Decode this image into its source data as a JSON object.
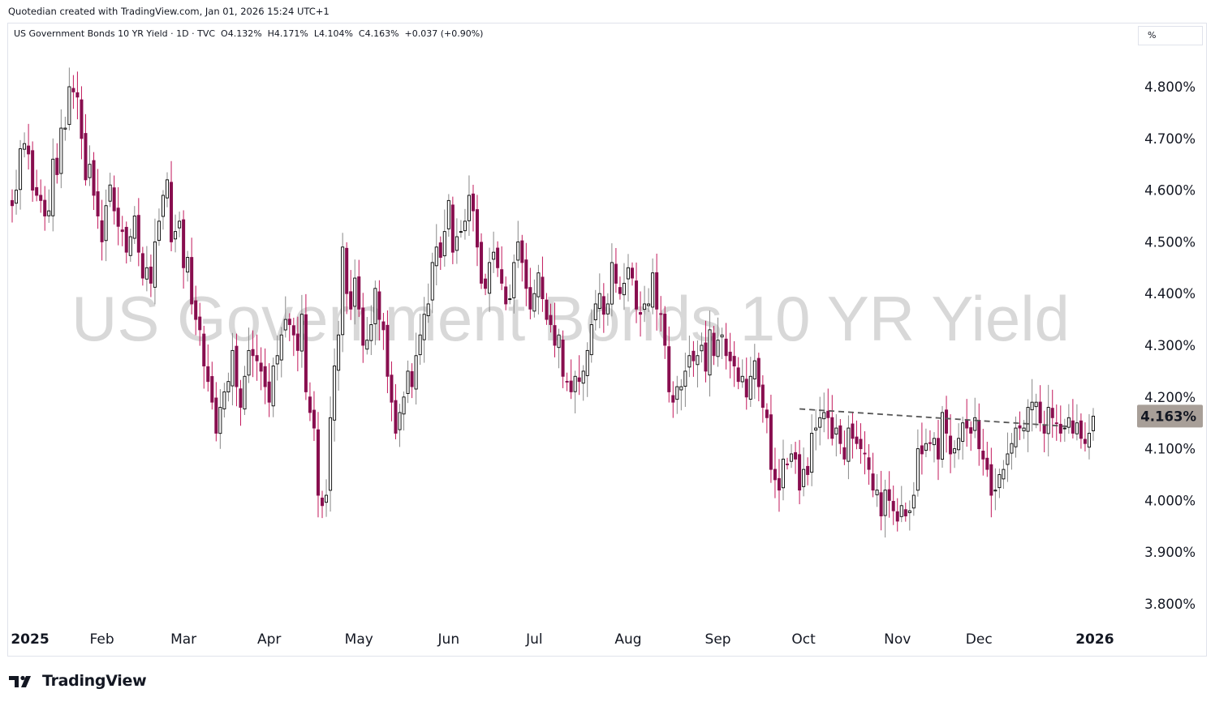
{
  "header": {
    "credit": "Quotedian created with TradingView.com, Jan 01, 2026 15:24 UTC+1"
  },
  "legend": {
    "symbol": "US Government Bonds 10 YR Yield",
    "interval": "1D",
    "source": "TVC",
    "ohlc_text": "O4.132%  H4.171%  L4.104%  C4.163%  +0.037 (+0.90%)"
  },
  "scale_box": {
    "label": "%"
  },
  "watermark": {
    "text": "US Government Bonds 10 YR Yield"
  },
  "footer": {
    "brand": "TradingView"
  },
  "colors": {
    "up_body": "#ffffff",
    "up_border": "#000000",
    "down_body": "#880e4f",
    "wick_up": "#888888",
    "wick_down": "#c2185b",
    "price_tag": "#a89f98",
    "trendline": "#555555"
  },
  "chart_data": {
    "type": "candlestick",
    "title": "US Government Bonds 10 YR Yield",
    "unit": "%",
    "ylim": [
      3.74,
      4.86
    ],
    "y_ticks": [
      4.8,
      4.7,
      4.6,
      4.5,
      4.4,
      4.3,
      4.2,
      4.1,
      4.0,
      3.9,
      3.8
    ],
    "y_tick_labels": [
      "4.800%",
      "4.700%",
      "4.600%",
      "4.500%",
      "4.400%",
      "4.300%",
      "4.200%",
      "4.100%",
      "4.000%",
      "3.900%",
      "3.800%"
    ],
    "x_axis_labels": [
      {
        "label": "2025",
        "date": "2025-01-02",
        "bold": true
      },
      {
        "label": "Feb",
        "date": "2025-02-03",
        "bold": false
      },
      {
        "label": "Mar",
        "date": "2025-03-03",
        "bold": false
      },
      {
        "label": "Apr",
        "date": "2025-04-01",
        "bold": false
      },
      {
        "label": "May",
        "date": "2025-05-01",
        "bold": false
      },
      {
        "label": "Jun",
        "date": "2025-06-02",
        "bold": false
      },
      {
        "label": "Jul",
        "date": "2025-07-01",
        "bold": false
      },
      {
        "label": "Aug",
        "date": "2025-08-01",
        "bold": false
      },
      {
        "label": "Sep",
        "date": "2025-09-02",
        "bold": false
      },
      {
        "label": "Oct",
        "date": "2025-10-01",
        "bold": false
      },
      {
        "label": "Nov",
        "date": "2025-11-03",
        "bold": false
      },
      {
        "label": "Dec",
        "date": "2025-12-01",
        "bold": false
      },
      {
        "label": "2026",
        "date": "2026-01-02",
        "bold": true
      }
    ],
    "last_price": 4.163,
    "last_price_label": "4.163%",
    "trendline": {
      "style": "dashed",
      "points": [
        {
          "date": "2025-09-30",
          "y": 4.177
        },
        {
          "date": "2025-12-31",
          "y": 4.143
        }
      ]
    },
    "series": [
      {
        "name": "US Government Bonds 10 YR Yield",
        "closes": [
          4.57,
          4.6,
          4.68,
          4.69,
          4.67,
          4.6,
          4.59,
          4.58,
          4.55,
          4.56,
          4.66,
          4.63,
          4.72,
          4.72,
          4.8,
          4.79,
          4.78,
          4.7,
          4.62,
          4.65,
          4.59,
          4.55,
          4.5,
          4.57,
          4.61,
          4.56,
          4.53,
          4.52,
          4.48,
          4.51,
          4.55,
          4.48,
          4.43,
          4.45,
          4.42,
          4.5,
          4.54,
          4.59,
          4.62,
          4.5,
          4.52,
          4.54,
          4.45,
          4.47,
          4.38,
          4.35,
          4.33,
          4.26,
          4.23,
          4.19,
          4.13,
          4.18,
          4.21,
          4.23,
          4.29,
          4.22,
          4.18,
          4.24,
          4.29,
          4.28,
          4.27,
          4.25,
          4.22,
          4.19,
          4.26,
          4.28,
          4.32,
          4.35,
          4.34,
          4.32,
          4.29,
          4.36,
          4.21,
          4.17,
          4.14,
          4.01,
          3.99,
          4.01,
          4.16,
          4.26,
          4.32,
          4.49,
          4.4,
          4.37,
          4.43,
          4.37,
          4.3,
          4.31,
          4.34,
          4.41,
          4.35,
          4.33,
          4.24,
          4.19,
          4.13,
          4.17,
          4.2,
          4.25,
          4.22,
          4.28,
          4.32,
          4.36,
          4.38,
          4.46,
          4.49,
          4.47,
          4.52,
          4.58,
          4.48,
          4.51,
          4.52,
          4.54,
          4.59,
          4.56,
          4.49,
          4.42,
          4.41,
          4.46,
          4.48,
          4.45,
          4.42,
          4.38,
          4.39,
          4.46,
          4.5,
          4.46,
          4.41,
          4.37,
          4.4,
          4.44,
          4.39,
          4.35,
          4.34,
          4.3,
          4.32,
          4.24,
          4.23,
          4.21,
          4.24,
          4.23,
          4.25,
          4.29,
          4.34,
          4.38,
          4.4,
          4.36,
          4.38,
          4.46,
          4.42,
          4.4,
          4.42,
          4.45,
          4.43,
          4.37,
          4.36,
          4.38,
          4.38,
          4.44,
          4.37,
          4.36,
          4.3,
          4.21,
          4.19,
          4.22,
          4.22,
          4.25,
          4.28,
          4.27,
          4.28,
          4.3,
          4.25,
          4.33,
          4.28,
          4.31,
          4.32,
          4.28,
          4.27,
          4.26,
          4.23,
          4.24,
          4.2,
          4.24,
          4.27,
          4.22,
          4.18,
          4.16,
          4.06,
          4.04,
          4.02,
          4.08,
          4.07,
          4.09,
          4.08,
          4.02,
          4.06,
          4.05,
          4.13,
          4.14,
          4.16,
          4.17,
          4.16,
          4.12,
          4.14,
          4.11,
          4.08,
          4.14,
          4.12,
          4.11,
          4.1,
          4.09,
          4.06,
          4.02,
          4.02,
          3.97,
          4.02,
          4.0,
          3.98,
          3.96,
          3.99,
          3.97,
          3.98,
          4.01,
          4.1,
          4.09,
          4.11,
          4.11,
          4.12,
          4.08,
          4.17,
          4.13,
          4.09,
          4.1,
          4.12,
          4.15,
          4.14,
          4.13,
          4.16,
          4.1,
          4.08,
          4.06,
          4.01,
          4.02,
          4.05,
          4.06,
          4.09,
          4.11,
          4.14,
          4.14,
          4.14,
          4.18,
          4.19,
          4.19,
          4.15,
          4.13,
          4.18,
          4.16,
          4.15,
          4.13,
          4.14,
          4.16,
          4.13,
          4.15,
          4.12,
          4.11,
          4.13,
          4.163
        ]
      }
    ]
  }
}
